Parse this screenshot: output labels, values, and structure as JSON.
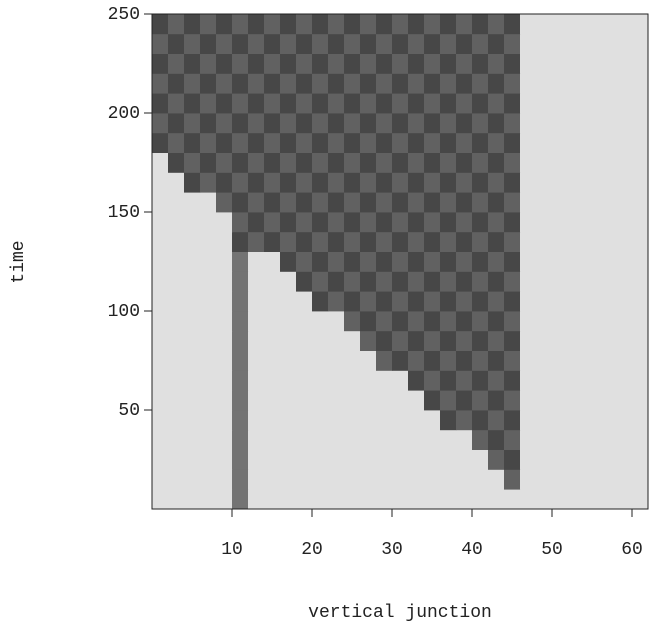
{
  "chart_data": {
    "type": "heatmap",
    "xlabel": "vertical junction",
    "ylabel": "time",
    "colormap": "gray",
    "xlim": [
      0,
      62
    ],
    "ylim": [
      0,
      250
    ],
    "xticks": [
      10,
      20,
      30,
      40,
      50,
      60
    ],
    "yticks": [
      50,
      100,
      150,
      200,
      250
    ],
    "x_edges": [
      0,
      2,
      4,
      6,
      8,
      10,
      12,
      14,
      16,
      18,
      20,
      22,
      24,
      26,
      28,
      30,
      32,
      34,
      36,
      38,
      40,
      42,
      44,
      46,
      48,
      50,
      52,
      54,
      56,
      58,
      60,
      62
    ],
    "y_edges": [
      0,
      10,
      20,
      30,
      40,
      50,
      60,
      70,
      80,
      90,
      100,
      110,
      120,
      130,
      140,
      150,
      160,
      170,
      180,
      190,
      200,
      210,
      220,
      230,
      240,
      250
    ],
    "z": [
      [
        0.88,
        0.88,
        0.88,
        0.88,
        0.88,
        0.45,
        0.88,
        0.88,
        0.88,
        0.88,
        0.88,
        0.88,
        0.88,
        0.88,
        0.88,
        0.88,
        0.88,
        0.88,
        0.88,
        0.88,
        0.88,
        0.88,
        0.88,
        0.88,
        0.88,
        0.88,
        0.88,
        0.88,
        0.88,
        0.88,
        0.88
      ],
      [
        0.88,
        0.88,
        0.88,
        0.88,
        0.88,
        0.45,
        0.88,
        0.88,
        0.88,
        0.88,
        0.88,
        0.88,
        0.88,
        0.88,
        0.88,
        0.88,
        0.88,
        0.88,
        0.88,
        0.88,
        0.88,
        0.88,
        0.38,
        0.88,
        0.88,
        0.88,
        0.88,
        0.88,
        0.88,
        0.88,
        0.88
      ],
      [
        0.88,
        0.88,
        0.88,
        0.88,
        0.88,
        0.45,
        0.88,
        0.88,
        0.88,
        0.88,
        0.88,
        0.88,
        0.88,
        0.88,
        0.88,
        0.88,
        0.88,
        0.88,
        0.88,
        0.88,
        0.88,
        0.38,
        0.28,
        0.88,
        0.88,
        0.88,
        0.88,
        0.88,
        0.88,
        0.88,
        0.88
      ],
      [
        0.88,
        0.88,
        0.88,
        0.88,
        0.88,
        0.45,
        0.88,
        0.88,
        0.88,
        0.88,
        0.88,
        0.88,
        0.88,
        0.88,
        0.88,
        0.88,
        0.88,
        0.88,
        0.88,
        0.88,
        0.38,
        0.28,
        0.38,
        0.88,
        0.88,
        0.88,
        0.88,
        0.88,
        0.88,
        0.88,
        0.88
      ],
      [
        0.88,
        0.88,
        0.88,
        0.88,
        0.88,
        0.45,
        0.88,
        0.88,
        0.88,
        0.88,
        0.88,
        0.88,
        0.88,
        0.88,
        0.88,
        0.88,
        0.88,
        0.88,
        0.28,
        0.38,
        0.28,
        0.38,
        0.28,
        0.88,
        0.88,
        0.88,
        0.88,
        0.88,
        0.88,
        0.88,
        0.88
      ],
      [
        0.88,
        0.88,
        0.88,
        0.88,
        0.88,
        0.45,
        0.88,
        0.88,
        0.88,
        0.88,
        0.88,
        0.88,
        0.88,
        0.88,
        0.88,
        0.88,
        0.88,
        0.28,
        0.38,
        0.28,
        0.38,
        0.28,
        0.38,
        0.88,
        0.88,
        0.88,
        0.88,
        0.88,
        0.88,
        0.88,
        0.88
      ],
      [
        0.88,
        0.88,
        0.88,
        0.88,
        0.88,
        0.45,
        0.88,
        0.88,
        0.88,
        0.88,
        0.88,
        0.88,
        0.88,
        0.88,
        0.88,
        0.88,
        0.28,
        0.38,
        0.28,
        0.38,
        0.28,
        0.38,
        0.28,
        0.88,
        0.88,
        0.88,
        0.88,
        0.88,
        0.88,
        0.88,
        0.88
      ],
      [
        0.88,
        0.88,
        0.88,
        0.88,
        0.88,
        0.45,
        0.88,
        0.88,
        0.88,
        0.88,
        0.88,
        0.88,
        0.88,
        0.88,
        0.38,
        0.28,
        0.38,
        0.28,
        0.38,
        0.28,
        0.38,
        0.28,
        0.38,
        0.88,
        0.88,
        0.88,
        0.88,
        0.88,
        0.88,
        0.88,
        0.88
      ],
      [
        0.88,
        0.88,
        0.88,
        0.88,
        0.88,
        0.45,
        0.88,
        0.88,
        0.88,
        0.88,
        0.88,
        0.88,
        0.88,
        0.38,
        0.28,
        0.38,
        0.28,
        0.38,
        0.28,
        0.38,
        0.28,
        0.38,
        0.28,
        0.88,
        0.88,
        0.88,
        0.88,
        0.88,
        0.88,
        0.88,
        0.88
      ],
      [
        0.88,
        0.88,
        0.88,
        0.88,
        0.88,
        0.45,
        0.88,
        0.88,
        0.88,
        0.88,
        0.88,
        0.88,
        0.38,
        0.28,
        0.38,
        0.28,
        0.38,
        0.28,
        0.38,
        0.28,
        0.38,
        0.28,
        0.38,
        0.88,
        0.88,
        0.88,
        0.88,
        0.88,
        0.88,
        0.88,
        0.88
      ],
      [
        0.88,
        0.88,
        0.88,
        0.88,
        0.88,
        0.45,
        0.88,
        0.88,
        0.88,
        0.88,
        0.28,
        0.38,
        0.28,
        0.38,
        0.28,
        0.38,
        0.28,
        0.38,
        0.28,
        0.38,
        0.28,
        0.38,
        0.28,
        0.88,
        0.88,
        0.88,
        0.88,
        0.88,
        0.88,
        0.88,
        0.88
      ],
      [
        0.88,
        0.88,
        0.88,
        0.88,
        0.88,
        0.45,
        0.88,
        0.88,
        0.88,
        0.28,
        0.38,
        0.28,
        0.38,
        0.28,
        0.38,
        0.28,
        0.38,
        0.28,
        0.38,
        0.28,
        0.38,
        0.28,
        0.38,
        0.88,
        0.88,
        0.88,
        0.88,
        0.88,
        0.88,
        0.88,
        0.88
      ],
      [
        0.88,
        0.88,
        0.88,
        0.88,
        0.88,
        0.45,
        0.88,
        0.88,
        0.28,
        0.38,
        0.28,
        0.38,
        0.28,
        0.38,
        0.28,
        0.38,
        0.28,
        0.38,
        0.28,
        0.38,
        0.28,
        0.38,
        0.28,
        0.88,
        0.88,
        0.88,
        0.88,
        0.88,
        0.88,
        0.88,
        0.88
      ],
      [
        0.88,
        0.88,
        0.88,
        0.88,
        0.88,
        0.28,
        0.38,
        0.28,
        0.38,
        0.28,
        0.38,
        0.28,
        0.38,
        0.28,
        0.38,
        0.28,
        0.38,
        0.28,
        0.38,
        0.28,
        0.38,
        0.28,
        0.38,
        0.88,
        0.88,
        0.88,
        0.88,
        0.88,
        0.88,
        0.88,
        0.88
      ],
      [
        0.88,
        0.88,
        0.88,
        0.88,
        0.88,
        0.38,
        0.28,
        0.38,
        0.28,
        0.38,
        0.28,
        0.38,
        0.28,
        0.38,
        0.28,
        0.38,
        0.28,
        0.38,
        0.28,
        0.38,
        0.28,
        0.38,
        0.28,
        0.88,
        0.88,
        0.88,
        0.88,
        0.88,
        0.88,
        0.88,
        0.88
      ],
      [
        0.88,
        0.88,
        0.88,
        0.88,
        0.38,
        0.28,
        0.38,
        0.28,
        0.38,
        0.28,
        0.38,
        0.28,
        0.38,
        0.28,
        0.38,
        0.28,
        0.38,
        0.28,
        0.38,
        0.28,
        0.38,
        0.28,
        0.38,
        0.88,
        0.88,
        0.88,
        0.88,
        0.88,
        0.88,
        0.88,
        0.88
      ],
      [
        0.88,
        0.88,
        0.28,
        0.38,
        0.28,
        0.38,
        0.28,
        0.38,
        0.28,
        0.38,
        0.28,
        0.38,
        0.28,
        0.38,
        0.28,
        0.38,
        0.28,
        0.38,
        0.28,
        0.38,
        0.28,
        0.38,
        0.28,
        0.88,
        0.88,
        0.88,
        0.88,
        0.88,
        0.88,
        0.88,
        0.88
      ],
      [
        0.88,
        0.28,
        0.38,
        0.28,
        0.38,
        0.28,
        0.38,
        0.28,
        0.38,
        0.28,
        0.38,
        0.28,
        0.38,
        0.28,
        0.38,
        0.28,
        0.38,
        0.28,
        0.38,
        0.28,
        0.38,
        0.28,
        0.38,
        0.88,
        0.88,
        0.88,
        0.88,
        0.88,
        0.88,
        0.88,
        0.88
      ],
      [
        0.28,
        0.38,
        0.28,
        0.38,
        0.28,
        0.38,
        0.28,
        0.38,
        0.28,
        0.38,
        0.28,
        0.38,
        0.28,
        0.38,
        0.28,
        0.38,
        0.28,
        0.38,
        0.28,
        0.38,
        0.28,
        0.38,
        0.28,
        0.88,
        0.88,
        0.88,
        0.88,
        0.88,
        0.88,
        0.88,
        0.88
      ],
      [
        0.38,
        0.28,
        0.38,
        0.28,
        0.38,
        0.28,
        0.38,
        0.28,
        0.38,
        0.28,
        0.38,
        0.28,
        0.38,
        0.28,
        0.38,
        0.28,
        0.38,
        0.28,
        0.38,
        0.28,
        0.38,
        0.28,
        0.38,
        0.88,
        0.88,
        0.88,
        0.88,
        0.88,
        0.88,
        0.88,
        0.88
      ],
      [
        0.28,
        0.38,
        0.28,
        0.38,
        0.28,
        0.38,
        0.28,
        0.38,
        0.28,
        0.38,
        0.28,
        0.38,
        0.28,
        0.38,
        0.28,
        0.38,
        0.28,
        0.38,
        0.28,
        0.38,
        0.28,
        0.38,
        0.28,
        0.88,
        0.88,
        0.88,
        0.88,
        0.88,
        0.88,
        0.88,
        0.88
      ],
      [
        0.38,
        0.28,
        0.38,
        0.28,
        0.38,
        0.28,
        0.38,
        0.28,
        0.38,
        0.28,
        0.38,
        0.28,
        0.38,
        0.28,
        0.38,
        0.28,
        0.38,
        0.28,
        0.38,
        0.28,
        0.38,
        0.28,
        0.38,
        0.88,
        0.88,
        0.88,
        0.88,
        0.88,
        0.88,
        0.88,
        0.88
      ],
      [
        0.28,
        0.38,
        0.28,
        0.38,
        0.28,
        0.38,
        0.28,
        0.38,
        0.28,
        0.38,
        0.28,
        0.38,
        0.28,
        0.38,
        0.28,
        0.38,
        0.28,
        0.38,
        0.28,
        0.38,
        0.28,
        0.38,
        0.28,
        0.88,
        0.88,
        0.88,
        0.88,
        0.88,
        0.88,
        0.88,
        0.88
      ],
      [
        0.38,
        0.28,
        0.38,
        0.28,
        0.38,
        0.28,
        0.38,
        0.28,
        0.38,
        0.28,
        0.38,
        0.28,
        0.38,
        0.28,
        0.38,
        0.28,
        0.38,
        0.28,
        0.38,
        0.28,
        0.38,
        0.28,
        0.38,
        0.88,
        0.88,
        0.88,
        0.88,
        0.88,
        0.88,
        0.88,
        0.88
      ],
      [
        0.28,
        0.38,
        0.28,
        0.38,
        0.28,
        0.38,
        0.28,
        0.38,
        0.28,
        0.38,
        0.28,
        0.38,
        0.28,
        0.38,
        0.28,
        0.38,
        0.28,
        0.38,
        0.28,
        0.38,
        0.28,
        0.38,
        0.28,
        0.88,
        0.88,
        0.88,
        0.88,
        0.88,
        0.88,
        0.88,
        0.88
      ]
    ]
  }
}
